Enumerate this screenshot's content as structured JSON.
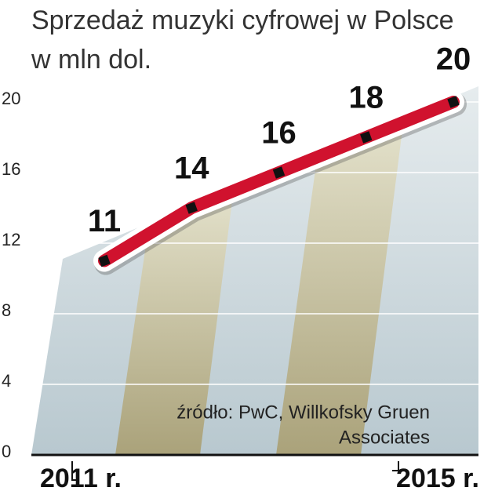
{
  "chart_data": {
    "type": "line",
    "title": "Sprzedaż muzyki cyfrowej w Polsce",
    "subtitle": "w mln dol.",
    "source": [
      "źródło: PwC, Willkofsky Gruen",
      "Associates"
    ],
    "categories": [
      "2011 r.",
      null,
      null,
      null,
      "2015 r."
    ],
    "series": [
      {
        "name": "Sprzedaż",
        "color": "#d0122e",
        "values": [
          11,
          14,
          16,
          18,
          20
        ]
      }
    ],
    "highlight_color": "#d0122e",
    "ylim": [
      0,
      20
    ],
    "yticks": [
      0,
      4,
      8,
      12,
      16,
      20
    ],
    "grid": true
  }
}
